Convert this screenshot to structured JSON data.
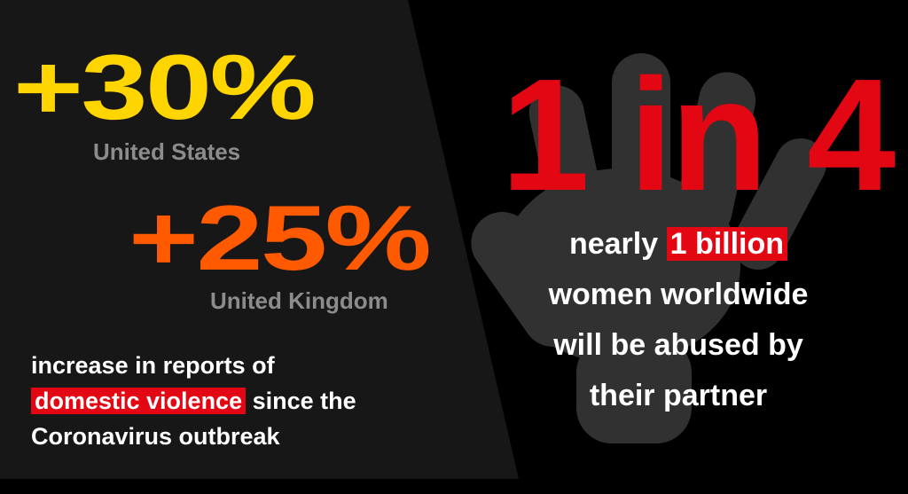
{
  "stats": [
    {
      "value": "+30%",
      "label": "United States"
    },
    {
      "value": "+25%",
      "label": "United Kingdom"
    }
  ],
  "note": {
    "line1": "increase in reports of",
    "highlight": "domestic violence",
    "after_highlight": "since the",
    "line3": "Coronavirus outbreak"
  },
  "callout": {
    "headline": "1 in 4",
    "prefix": "nearly",
    "highlight": "1 billion",
    "lines": [
      "women worldwide",
      "will be abused by",
      "their partner"
    ]
  }
}
